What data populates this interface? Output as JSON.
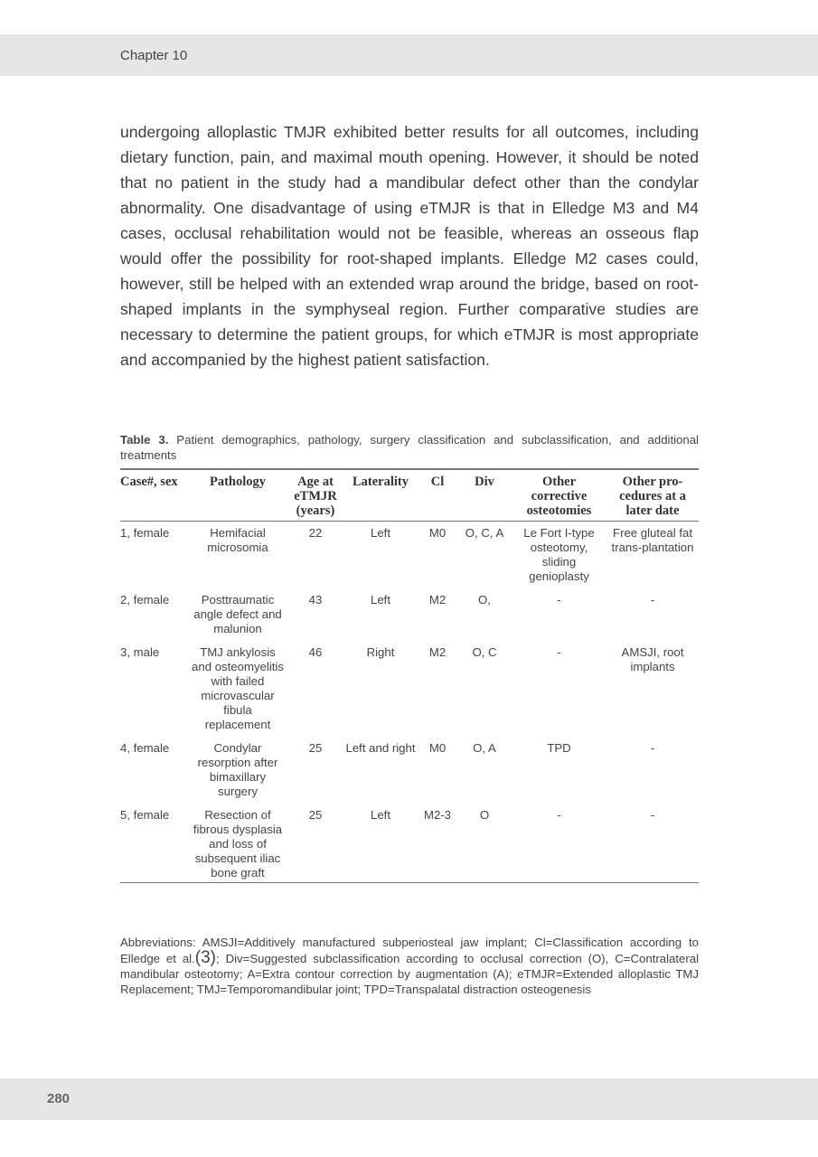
{
  "header": {
    "chapter": "Chapter 10"
  },
  "body_text": "undergoing alloplastic TMJR exhibited better results for all outcomes, including dietary function, pain, and maximal mouth opening. However, it should be noted that no patient in the study had a mandibular defect other than the condylar abnormality. One disadvantage of using eTMJR is that in Elledge M3 and M4 cases, occlusal rehabilitation would not be feasible, whereas an osseous flap would offer the possibility for root-shaped implants. Elledge M2 cases could, however, still be helped with an extended wrap around the bridge, based on root-shaped implants in the symphyseal region. Further comparative studies are necessary to determine the patient groups, for which eTMJR is most appropriate and accompanied by the highest patient satisfaction.",
  "table": {
    "caption_label": "Table 3.",
    "caption_text": " Patient demographics, pathology, surgery classification and subclassification, and additional treatments",
    "headers": [
      "Case#, sex",
      "Pathology",
      "Age at eTMJR (years)",
      "Laterality",
      "Cl",
      "Div",
      "Other corrective osteotomies",
      "Other pro-cedures at a later date"
    ],
    "rows": [
      [
        "1, female",
        "Hemifacial microsomia",
        "22",
        "Left",
        "M0",
        "O, C, A",
        "Le Fort I-type osteotomy, sliding genioplasty",
        "Free gluteal fat trans-plantation"
      ],
      [
        "2, female",
        "Posttraumatic angle defect and malunion",
        "43",
        "Left",
        "M2",
        "O,",
        "-",
        "-"
      ],
      [
        "3, male",
        "TMJ ankylosis and osteomyelitis with failed microvascular fibula replacement",
        "46",
        "Right",
        "M2",
        "O, C",
        "-",
        "AMSJI, root implants"
      ],
      [
        "4, female",
        "Condylar resorption after bimaxillary surgery",
        "25",
        "Left and right",
        "M0",
        "O, A",
        "TPD",
        "-"
      ],
      [
        "5, female",
        "Resection of fibrous dysplasia and loss of subsequent iliac bone graft",
        "25",
        "Left",
        "M2-3",
        "O",
        "-",
        "-"
      ]
    ]
  },
  "abbreviations": {
    "part1": "Abbreviations: AMSJI=Additively manufactured subperiosteal jaw implant; Cl=Classification according to Elledge et al.",
    "ref": "(3)",
    "part2": "; Div=Suggested subclassification according to occlusal correction (O), C=Contralateral mandibular osteotomy; A=Extra contour correction by augmentation (A); eTMJR=Extended alloplastic TMJ Replacement; TMJ=Temporomandibular joint; TPD=Transpalatal distraction osteogenesis"
  },
  "footer": {
    "page_number": "280"
  }
}
